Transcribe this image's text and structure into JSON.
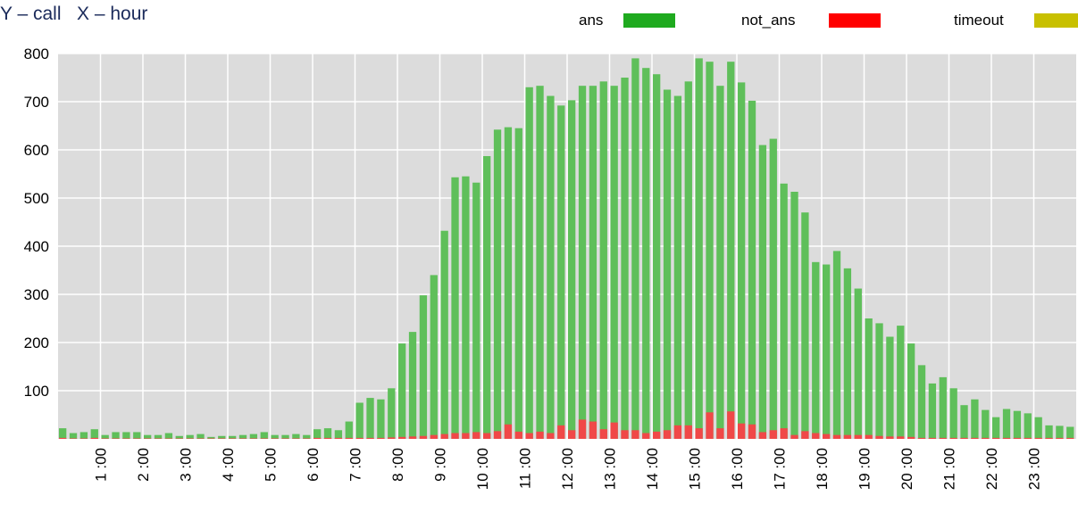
{
  "chart_data": {
    "type": "bar",
    "title": "Y – call   X – hour",
    "x": [
      0,
      0.25,
      0.5,
      0.75,
      1,
      1.25,
      1.5,
      1.75,
      2,
      2.25,
      2.5,
      2.75,
      3,
      3.25,
      3.5,
      3.75,
      4,
      4.25,
      4.5,
      4.75,
      5,
      5.25,
      5.5,
      5.75,
      6,
      6.25,
      6.5,
      6.75,
      7,
      7.25,
      7.5,
      7.75,
      8,
      8.25,
      8.5,
      8.75,
      9,
      9.25,
      9.5,
      9.75,
      10,
      10.25,
      10.5,
      10.75,
      11,
      11.25,
      11.5,
      11.75,
      12,
      12.25,
      12.5,
      12.75,
      13,
      13.25,
      13.5,
      13.75,
      14,
      14.25,
      14.5,
      14.75,
      15,
      15.25,
      15.5,
      15.75,
      16,
      16.25,
      16.5,
      16.75,
      17,
      17.25,
      17.5,
      17.75,
      18,
      18.25,
      18.5,
      18.75,
      19,
      19.25,
      19.5,
      19.75,
      20,
      20.25,
      20.5,
      20.75,
      21,
      21.25,
      21.5,
      21.75,
      22,
      22.25,
      22.5,
      22.75,
      23,
      23.25,
      23.5,
      23.75
    ],
    "series": [
      {
        "name": "ans",
        "color": "#1faa1f",
        "bar_color": "#5fbf5a",
        "values": [
          22,
          12,
          14,
          20,
          8,
          14,
          14,
          14,
          8,
          8,
          12,
          6,
          8,
          10,
          4,
          6,
          6,
          8,
          10,
          14,
          8,
          8,
          10,
          8,
          20,
          22,
          18,
          36,
          75,
          85,
          82,
          105,
          198,
          222,
          298,
          340,
          432,
          543,
          545,
          532,
          587,
          642,
          647,
          645,
          730,
          733,
          712,
          692,
          703,
          733,
          733,
          742,
          733,
          750,
          790,
          770,
          757,
          725,
          712,
          742,
          790,
          783,
          733,
          783,
          740,
          702,
          610,
          623,
          530,
          513,
          470,
          367,
          362,
          390,
          354,
          312,
          250,
          240,
          212,
          235,
          198,
          153,
          115,
          128,
          105,
          70,
          82,
          60,
          45,
          62,
          58,
          53,
          45,
          28,
          27,
          25
        ]
      },
      {
        "name": "not_ans",
        "color": "#ff0000",
        "bar_color": "#f04848",
        "values": [
          2,
          1,
          1,
          2,
          1,
          1,
          1,
          1,
          1,
          1,
          1,
          1,
          1,
          1,
          1,
          1,
          1,
          1,
          1,
          1,
          1,
          1,
          1,
          1,
          2,
          2,
          2,
          2,
          2,
          2,
          2,
          3,
          4,
          5,
          6,
          8,
          10,
          12,
          12,
          14,
          12,
          16,
          30,
          15,
          12,
          15,
          12,
          28,
          18,
          40,
          36,
          20,
          34,
          18,
          18,
          12,
          15,
          18,
          28,
          28,
          22,
          55,
          22,
          57,
          32,
          30,
          14,
          18,
          22,
          8,
          16,
          12,
          10,
          8,
          8,
          8,
          8,
          6,
          5,
          5,
          4,
          2,
          2,
          2,
          2,
          2,
          2,
          2,
          2,
          2,
          2,
          2,
          2,
          2,
          2,
          2
        ]
      },
      {
        "name": "timeout",
        "color": "#c8c000",
        "bar_color": "#c8c000",
        "values": [
          0,
          0,
          0,
          0,
          0,
          0,
          0,
          0,
          0,
          0,
          0,
          0,
          0,
          0,
          0,
          0,
          0,
          0,
          0,
          0,
          0,
          0,
          0,
          0,
          0,
          0,
          0,
          0,
          0,
          0,
          0,
          0,
          0,
          0,
          0,
          0,
          0,
          0,
          0,
          0,
          0,
          0,
          0,
          0,
          0,
          0,
          0,
          0,
          0,
          0,
          0,
          0,
          0,
          0,
          0,
          0,
          0,
          0,
          0,
          0,
          0,
          0,
          0,
          0,
          0,
          0,
          0,
          0,
          0,
          0,
          0,
          0,
          0,
          0,
          0,
          0,
          0,
          0,
          0,
          0,
          0,
          0,
          0,
          0,
          0,
          0,
          0,
          0,
          0,
          0,
          0,
          0,
          0,
          0,
          0,
          0
        ]
      }
    ],
    "xlim": [
      0,
      24
    ],
    "xticks": [
      {
        "value": 1,
        "label": "1 :00"
      },
      {
        "value": 2,
        "label": "2 :00"
      },
      {
        "value": 3,
        "label": "3 :00"
      },
      {
        "value": 4,
        "label": "4 :00"
      },
      {
        "value": 5,
        "label": "5 :00"
      },
      {
        "value": 6,
        "label": "6 :00"
      },
      {
        "value": 7,
        "label": "7 :00"
      },
      {
        "value": 8,
        "label": "8 :00"
      },
      {
        "value": 9,
        "label": "9 :00"
      },
      {
        "value": 10,
        "label": "10 :00"
      },
      {
        "value": 11,
        "label": "11 :00"
      },
      {
        "value": 12,
        "label": "12 :00"
      },
      {
        "value": 13,
        "label": "13 :00"
      },
      {
        "value": 14,
        "label": "14 :00"
      },
      {
        "value": 15,
        "label": "15 :00"
      },
      {
        "value": 16,
        "label": "16 :00"
      },
      {
        "value": 17,
        "label": "17 :00"
      },
      {
        "value": 18,
        "label": "18 :00"
      },
      {
        "value": 19,
        "label": "19 :00"
      },
      {
        "value": 20,
        "label": "20 :00"
      },
      {
        "value": 21,
        "label": "21 :00"
      },
      {
        "value": 22,
        "label": "22 :00"
      },
      {
        "value": 23,
        "label": "23 :00"
      }
    ],
    "ylim": [
      0,
      800
    ],
    "yticks": [
      100,
      200,
      300,
      400,
      500,
      600,
      700,
      800
    ],
    "grid": true
  }
}
